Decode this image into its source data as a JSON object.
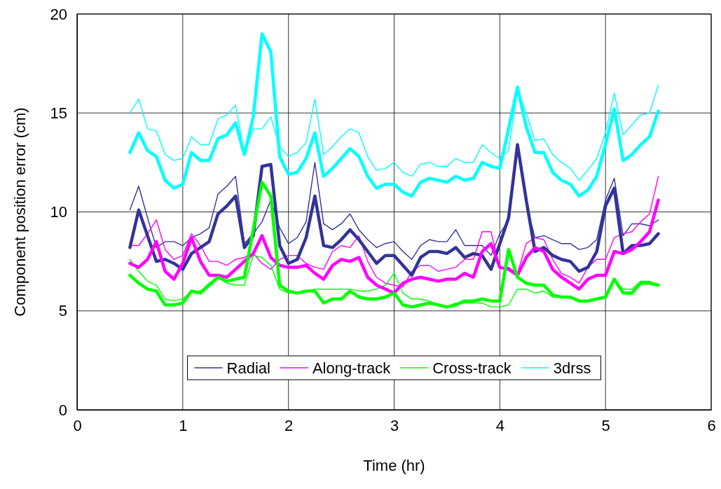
{
  "chart_data": {
    "type": "line",
    "xlabel": "Time (hr)",
    "ylabel": "Component position error (cm)",
    "x": [
      0.5,
      0.583,
      0.667,
      0.75,
      0.833,
      0.917,
      1,
      1.083,
      1.167,
      1.25,
      1.333,
      1.417,
      1.5,
      1.583,
      1.667,
      1.75,
      1.833,
      1.917,
      2,
      2.083,
      2.167,
      2.25,
      2.333,
      2.417,
      2.5,
      2.583,
      2.667,
      2.75,
      2.833,
      2.917,
      3,
      3.083,
      3.167,
      3.25,
      3.333,
      3.417,
      3.5,
      3.583,
      3.667,
      3.75,
      3.833,
      3.917,
      4,
      4.083,
      4.167,
      4.25,
      4.333,
      4.417,
      4.5,
      4.583,
      4.667,
      4.75,
      4.833,
      4.917,
      5,
      5.083,
      5.167,
      5.25,
      5.333,
      5.417,
      5.5
    ],
    "series": [
      {
        "name": "Radial",
        "color": "#333399",
        "values": [
          10.1,
          11.3,
          9.7,
          8.2,
          8.5,
          8.5,
          8.3,
          8.7,
          8.9,
          9.2,
          10.9,
          11.3,
          11.8,
          8.4,
          8.9,
          9.5,
          10.6,
          9.2,
          8.4,
          8.7,
          9.5,
          12.5,
          9.4,
          9.1,
          9.4,
          9.9,
          9.1,
          8.6,
          8.2,
          8.4,
          8.5,
          8.0,
          7.6,
          8.3,
          8.6,
          8.5,
          8.5,
          9.1,
          8.3,
          8.3,
          8.3,
          7.8,
          8.9,
          9.6,
          13.4,
          10.4,
          8.7,
          8.8,
          8.6,
          8.4,
          8.4,
          8.1,
          8.2,
          8.6,
          10.6,
          11.7,
          8.8,
          9.4,
          9.4,
          9.3,
          9.6
        ]
      },
      {
        "name": "Along-track",
        "color": "#ff00ff",
        "values": [
          8.3,
          8.3,
          8.9,
          9.6,
          8.1,
          7.6,
          7.8,
          8.9,
          8.3,
          7.5,
          7.5,
          7.3,
          7.6,
          7.7,
          7.9,
          7.4,
          7.1,
          7.6,
          7.8,
          7.8,
          7.4,
          7.2,
          7.1,
          8.0,
          8.3,
          8.2,
          8.8,
          7.5,
          6.7,
          6.4,
          6.3,
          6.2,
          7.0,
          7.3,
          7.3,
          7.0,
          7.1,
          7.2,
          7.6,
          7.6,
          9.0,
          9.0,
          7.2,
          7.2,
          6.9,
          8.4,
          8.7,
          8.6,
          7.6,
          6.9,
          6.7,
          6.4,
          7.2,
          7.6,
          7.6,
          8.7,
          8.9,
          9.0,
          9.5,
          9.9,
          11.8
        ]
      },
      {
        "name": "Cross-track",
        "color": "#00ff00",
        "values": [
          7.6,
          7.0,
          6.5,
          6.3,
          5.6,
          5.5,
          5.6,
          6.0,
          6.0,
          6.4,
          6.7,
          6.4,
          6.3,
          6.3,
          7.8,
          7.7,
          7.3,
          6.1,
          5.9,
          5.9,
          6.0,
          6.1,
          6.1,
          6.1,
          6.1,
          6.1,
          6.0,
          6.0,
          6.1,
          6.3,
          6.9,
          5.9,
          5.6,
          5.6,
          5.5,
          5.3,
          5.2,
          5.4,
          5.4,
          5.4,
          5.4,
          5.2,
          5.2,
          5.3,
          6.1,
          6.1,
          5.9,
          6.0,
          5.7,
          5.7,
          5.7,
          5.5,
          5.5,
          5.6,
          5.7,
          6.6,
          6.1,
          6.1,
          6.5,
          6.5,
          6.3
        ]
      },
      {
        "name": "3drss",
        "color": "#00ffff",
        "values": [
          15.0,
          15.7,
          14.2,
          14.1,
          12.9,
          12.6,
          12.7,
          13.8,
          13.4,
          13.4,
          14.7,
          14.9,
          15.4,
          12.9,
          14.2,
          14.2,
          14.8,
          13.3,
          12.8,
          13.0,
          13.5,
          15.7,
          12.9,
          13.3,
          13.8,
          14.2,
          14.0,
          12.8,
          12.1,
          12.2,
          12.5,
          12.0,
          11.8,
          12.4,
          12.5,
          12.3,
          12.3,
          12.7,
          12.5,
          12.5,
          13.4,
          13.0,
          12.7,
          13.1,
          16.2,
          15.0,
          13.6,
          13.7,
          12.9,
          12.5,
          12.2,
          11.6,
          12.1,
          12.7,
          14.0,
          16.0,
          13.9,
          14.4,
          14.9,
          15.0,
          16.4
        ]
      },
      {
        "color": "#333399",
        "values": [
          8.2,
          10.1,
          8.8,
          7.5,
          7.6,
          7.4,
          7.1,
          7.9,
          8.2,
          8.5,
          9.9,
          10.3,
          10.8,
          8.2,
          8.8,
          12.3,
          12.4,
          8.3,
          7.4,
          7.6,
          8.7,
          10.8,
          8.3,
          8.2,
          8.6,
          9.1,
          8.6,
          8.0,
          7.4,
          7.8,
          7.8,
          7.3,
          6.8,
          7.7,
          8.0,
          8.0,
          7.9,
          8.2,
          7.7,
          7.9,
          7.8,
          7.1,
          8.4,
          9.7,
          13.4,
          10.6,
          8.0,
          8.2,
          7.8,
          7.6,
          7.5,
          7.0,
          7.2,
          8.0,
          10.3,
          11.2,
          7.9,
          8.3,
          8.3,
          8.4,
          8.9
        ]
      },
      {
        "color": "#ff00ff",
        "values": [
          7.4,
          7.2,
          7.6,
          8.5,
          7.0,
          6.6,
          7.4,
          8.7,
          7.5,
          6.8,
          6.8,
          6.7,
          7.1,
          7.5,
          7.9,
          8.8,
          7.7,
          7.3,
          7.2,
          7.2,
          7.3,
          6.9,
          6.6,
          7.3,
          7.6,
          7.5,
          7.7,
          6.7,
          6.3,
          6.1,
          5.9,
          6.4,
          6.6,
          6.7,
          6.6,
          6.5,
          6.6,
          6.6,
          6.9,
          6.7,
          8.0,
          8.4,
          7.2,
          7.1,
          6.8,
          7.7,
          8.2,
          8.0,
          7.1,
          6.7,
          6.4,
          6.1,
          6.6,
          6.8,
          6.8,
          8.0,
          7.9,
          8.1,
          8.5,
          9.0,
          10.6
        ]
      },
      {
        "color": "#00ff00",
        "values": [
          6.8,
          6.4,
          6.1,
          6.0,
          5.3,
          5.3,
          5.4,
          6.0,
          5.9,
          6.3,
          6.7,
          6.5,
          6.6,
          6.7,
          9.1,
          11.5,
          10.8,
          6.3,
          6.0,
          5.9,
          6.0,
          6.0,
          5.4,
          5.6,
          5.6,
          6.0,
          5.7,
          5.6,
          5.6,
          5.7,
          5.9,
          5.3,
          5.2,
          5.3,
          5.4,
          5.3,
          5.2,
          5.3,
          5.5,
          5.5,
          5.6,
          5.5,
          5.5,
          8.1,
          6.7,
          6.4,
          6.3,
          6.3,
          5.8,
          5.7,
          5.7,
          5.5,
          5.5,
          5.6,
          5.7,
          6.6,
          5.9,
          5.9,
          6.4,
          6.4,
          6.3
        ]
      },
      {
        "color": "#00ffff",
        "values": [
          13.0,
          14.0,
          13.1,
          12.8,
          11.6,
          11.2,
          11.4,
          13.0,
          12.6,
          12.6,
          13.7,
          13.9,
          14.5,
          12.9,
          14.8,
          19.0,
          18.1,
          12.8,
          11.9,
          12.0,
          12.7,
          14.0,
          11.8,
          12.2,
          12.7,
          13.2,
          12.8,
          11.8,
          11.2,
          11.4,
          11.4,
          11.0,
          10.8,
          11.5,
          11.7,
          11.6,
          11.5,
          11.8,
          11.6,
          11.7,
          12.5,
          12.3,
          12.2,
          14.2,
          16.3,
          14.3,
          13.0,
          13.0,
          12.0,
          11.6,
          11.4,
          10.8,
          11.1,
          11.8,
          13.4,
          15.2,
          12.6,
          12.9,
          13.4,
          13.8,
          15.1
        ]
      }
    ],
    "xlim": [
      0,
      6
    ],
    "xticks": [
      0,
      1,
      2,
      3,
      4,
      5,
      6
    ],
    "ylim": [
      0,
      20
    ],
    "yticks": [
      0,
      5,
      10,
      15,
      20
    ],
    "grid": true,
    "legend": "bottom",
    "marker": "none",
    "line_style": "solid"
  }
}
